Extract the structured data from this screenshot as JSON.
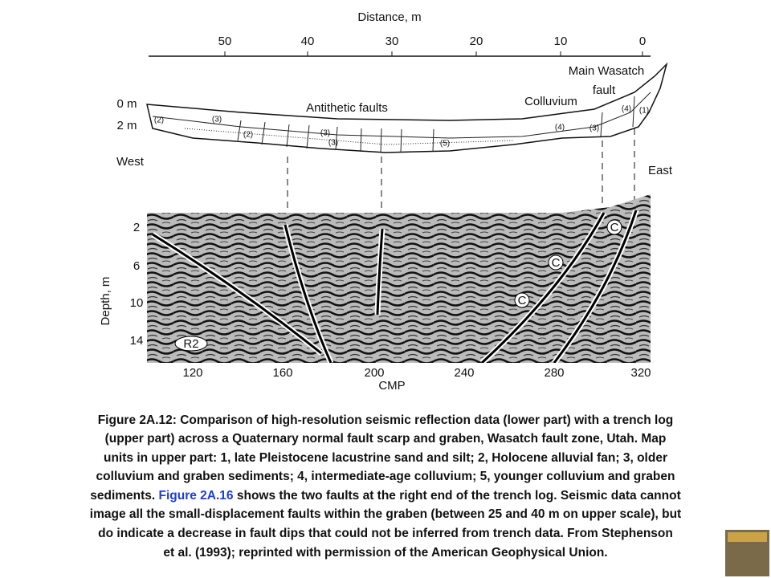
{
  "figure": {
    "top_axis": {
      "label": "Distance, m",
      "ticks": [
        "50",
        "40",
        "30",
        "20",
        "10",
        "0"
      ]
    },
    "trench": {
      "depth_labels": [
        "0 m",
        "2 m"
      ],
      "west": "West",
      "east": "East",
      "labels": {
        "antithetic": "Antithetic faults",
        "colluvium": "Colluvium",
        "main1": "Main Wasatch",
        "main2": "fault"
      },
      "units": [
        "(2)",
        "(3)",
        "(2)",
        "(3)",
        "(3)",
        "(5)",
        "(4)",
        "(3)",
        "(4)",
        "(1)"
      ]
    },
    "seismic": {
      "depth_label": "Depth, m",
      "depth_ticks": [
        "2",
        "6",
        "10",
        "14"
      ],
      "x_label": "CMP",
      "x_ticks": [
        "120",
        "160",
        "200",
        "240",
        "280",
        "320"
      ],
      "r2": "R2",
      "c_labels": [
        "C",
        "C",
        "C"
      ]
    }
  },
  "caption": {
    "lines": [
      "Figure 2A.12:  Comparison of high-resolution seismic reflection data (lower part) with a trench log",
      "(upper part) across a Quaternary normal fault scarp and graben, Wasatch fault zone, Utah. Map",
      "units in upper part: 1, late Pleistocene lacustrine sand and silt; 2, Holocene alluvial fan; 3, older",
      "colluvium and graben sediments; 4, intermediate-age colluvium; 5, younger colluvium and graben"
    ],
    "line5": {
      "before": "sediments. ",
      "link": "Figure 2A.16",
      "after": " shows the two faults at the right end of the trench log. Seismic data cannot"
    },
    "rest": [
      "image all the small-displacement faults within the graben (between 25 and 40 m on upper scale), but",
      "do indicate a decrease in fault dips that could not be inferred from trench data. From Stephenson",
      "et al. (1993); reprinted with permission of the American Geophysical Union."
    ]
  }
}
